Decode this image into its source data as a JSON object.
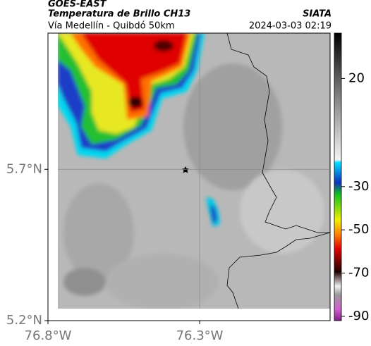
{
  "header": {
    "title": "GOES-EAST",
    "subtitle": "Temperatura de Brillo CH13",
    "source": "SIATA",
    "route": "Vía Medellín - Quibdó 50km",
    "timestamp": "2024-03-03 02:19"
  },
  "map": {
    "xlim": [
      -76.8,
      -75.87
    ],
    "ylim": [
      5.2,
      6.15
    ],
    "xticks": [
      {
        "value": -76.8,
        "label": "76.8°W"
      },
      {
        "value": -76.3,
        "label": "76.3°W"
      }
    ],
    "yticks": [
      {
        "value": 5.2,
        "label": "5.2°N"
      },
      {
        "value": 5.7,
        "label": "5.7°N"
      }
    ],
    "grid": true
  },
  "colorbar": {
    "clim": [
      -92,
      41
    ],
    "ticks": [
      20,
      -30,
      -50,
      -70,
      -90
    ]
  }
}
